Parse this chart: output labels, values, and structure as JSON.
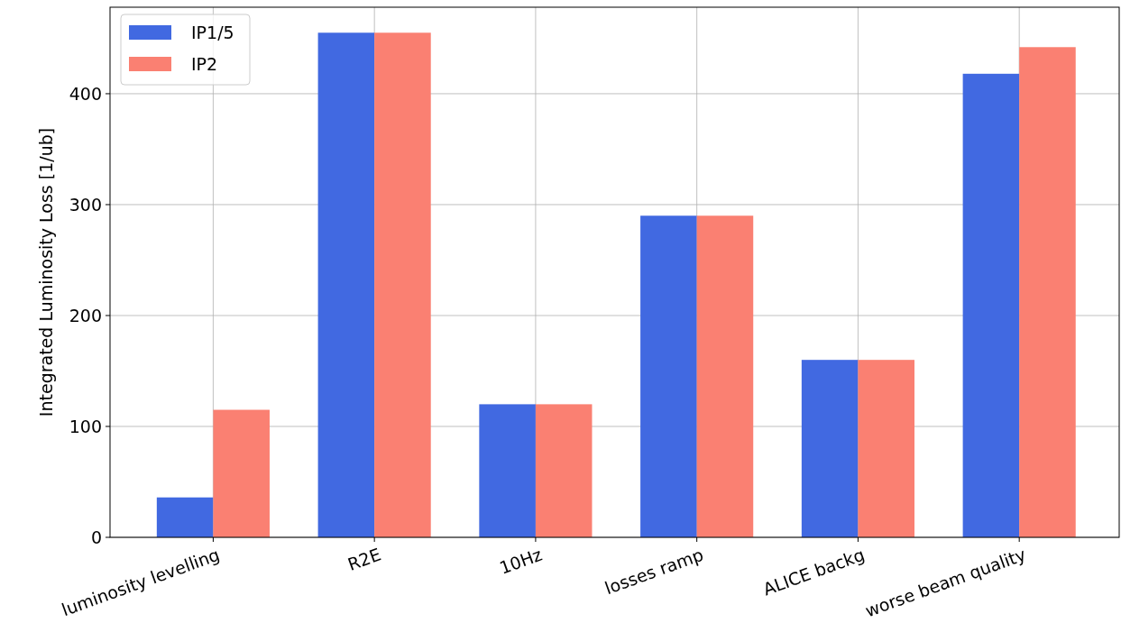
{
  "chart_data": {
    "type": "bar",
    "ylabel": "Integrated Luminosity Loss [1/ub]",
    "categories": [
      "luminosity levelling",
      "R2E",
      "10Hz",
      "losses ramp",
      "ALICE backg",
      "worse beam quality"
    ],
    "series": [
      {
        "name": "IP1/5",
        "color": "#4169e1",
        "values": [
          36,
          455,
          120,
          290,
          160,
          418
        ]
      },
      {
        "name": "IP2",
        "color": "#fa8072",
        "values": [
          115,
          455,
          120,
          290,
          160,
          442
        ]
      }
    ],
    "ylim": [
      0,
      478
    ],
    "yticks": [
      0,
      100,
      200,
      300,
      400
    ],
    "grid": true,
    "legend": "top left"
  }
}
